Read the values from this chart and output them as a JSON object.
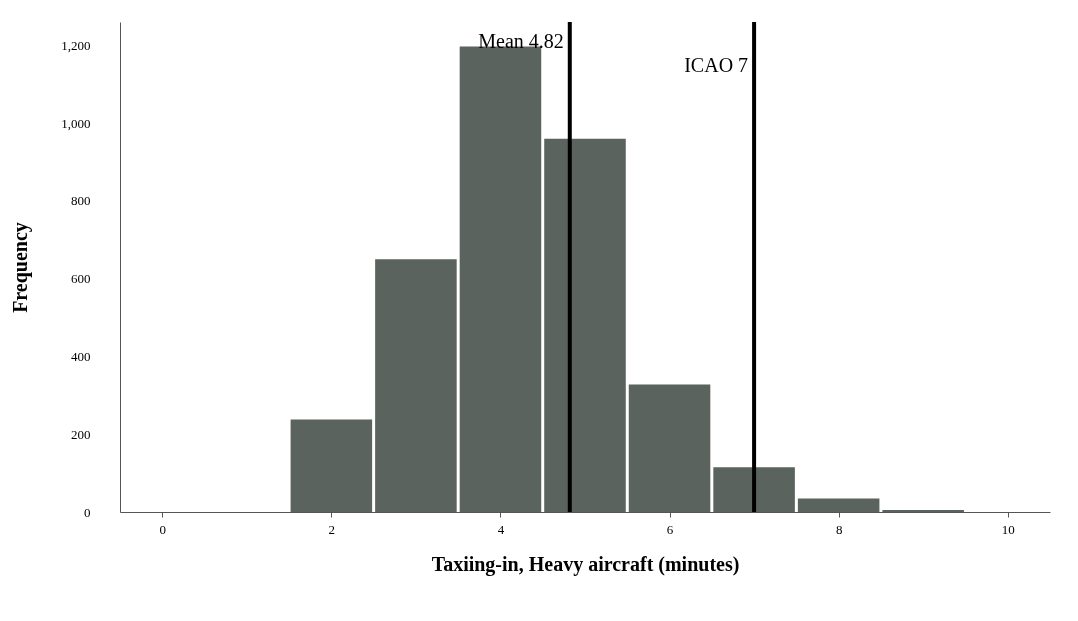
{
  "chart_data": {
    "type": "histogram",
    "xlabel": "Taxiing-in, Heavy aircraft (minutes)",
    "ylabel": "Frequency",
    "bins": [
      1.5,
      2.5,
      3.5,
      4.5,
      5.5,
      6.5,
      7.5,
      8.5,
      9.5
    ],
    "values": [
      238,
      650,
      1197,
      960,
      328,
      115,
      35,
      5
    ],
    "color": "#5a635d",
    "xlim": [
      -0.5,
      10.5
    ],
    "xticks": [
      0,
      2,
      4,
      6,
      8,
      10
    ],
    "ylim": [
      0,
      1260
    ],
    "yticks": [
      0,
      {
        "value": 200,
        "label": "200"
      },
      {
        "value": 400,
        "label": "400"
      },
      {
        "value": 600,
        "label": "600"
      },
      {
        "value": 800,
        "label": "800"
      },
      {
        "value": 1000,
        "label": "1,000"
      },
      {
        "value": 1200,
        "label": "1,200"
      }
    ],
    "ref_lines": [
      {
        "axis": "x",
        "value": 4.82,
        "label": "Mean 4.82",
        "color": "#000000"
      },
      {
        "axis": "x",
        "value": 7,
        "label": "ICAO 7",
        "color": "#000000"
      }
    ],
    "grid": false
  }
}
